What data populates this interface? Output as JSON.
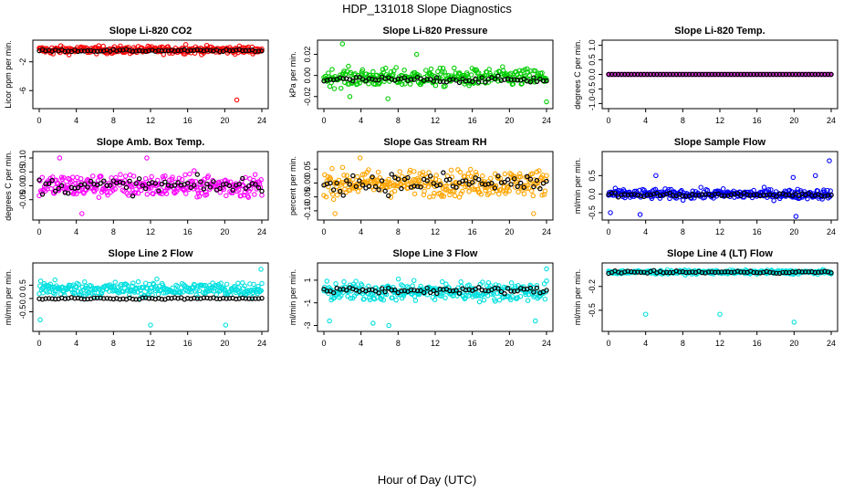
{
  "title": "HDP_131018  Slope Diagnostics",
  "xlabel": "Hour of Day (UTC)",
  "chart_data": [
    {
      "type": "scatter",
      "title": "Slope Li-820 CO2",
      "ylabel": "Licor ppm per min.",
      "color": "#ff0000",
      "xlim": [
        0,
        24
      ],
      "ylim": [
        -8,
        0.5
      ],
      "yticks": [
        -6,
        -2
      ],
      "ytick_labels": [
        "-6",
        "-2"
      ],
      "xticks": [
        0,
        4,
        8,
        12,
        16,
        20,
        24
      ],
      "color_series": {
        "center": -0.35,
        "spread": 0.55,
        "outliers": [
          [
            15.8,
            0.4
          ],
          [
            21.3,
            -7.3
          ],
          [
            1.5,
            -0.9
          ]
        ]
      },
      "black_series": {
        "center": -0.45,
        "spread": 0.15
      }
    },
    {
      "type": "scatter",
      "title": "Slope Li-820 Pressure",
      "ylabel": "kPa per min.",
      "color": "#00cc00",
      "xlim": [
        0,
        24
      ],
      "ylim": [
        -0.028,
        0.03
      ],
      "yticks": [
        -0.02,
        0,
        0.02
      ],
      "ytick_labels": [
        "-0.02",
        "0.00",
        "0.02"
      ],
      "xticks": [
        0,
        4,
        8,
        12,
        16,
        20,
        24
      ],
      "color_series": {
        "center": -0.002,
        "spread": 0.009,
        "outliers": [
          [
            2.0,
            0.03
          ],
          [
            10.0,
            0.02
          ],
          [
            24.0,
            -0.025
          ],
          [
            2.8,
            -0.02
          ],
          [
            6.9,
            -0.022
          ]
        ]
      },
      "black_series": {
        "center": -0.004,
        "spread": 0.003
      }
    },
    {
      "type": "scatter",
      "title": "Slope Li-820 Temp.",
      "ylabel": "degrees C per min.",
      "color": "#d030d0",
      "xlim": [
        0,
        24
      ],
      "ylim": [
        -1.05,
        1.05
      ],
      "yticks": [
        -1,
        -0.5,
        0,
        0.5,
        1
      ],
      "ytick_labels": [
        "-1.0",
        "-0.5",
        "0.0",
        "0.5",
        "1.0"
      ],
      "xticks": [
        0,
        4,
        8,
        12,
        16,
        20,
        24
      ],
      "color_series": {
        "center": 0,
        "spread": 0,
        "outliers": []
      },
      "black_series": {
        "center": 0,
        "spread": 0
      }
    },
    {
      "type": "scatter",
      "title": "Slope Amb. Box Temp.",
      "ylabel": "degrees C per min.",
      "color": "#ff00ff",
      "xlim": [
        0,
        24
      ],
      "ylim": [
        -0.11,
        0.11
      ],
      "yticks": [
        -0.05,
        0,
        0.05,
        0.1
      ],
      "ytick_labels": [
        "-0.05",
        "0.00",
        "0.05",
        "0.10"
      ],
      "xticks": [
        0,
        4,
        8,
        12,
        16,
        20,
        24
      ],
      "color_series": {
        "center": 0,
        "spread": 0.045,
        "outliers": [
          [
            4.6,
            -0.1
          ],
          [
            2.2,
            0.1
          ],
          [
            11.6,
            0.1
          ]
        ]
      },
      "black_series": {
        "center": 0,
        "spread": 0.03
      }
    },
    {
      "type": "scatter",
      "title": "Slope Gas Stream RH",
      "ylabel": "percent per min.",
      "color": "#ffa500",
      "xlim": [
        0,
        24
      ],
      "ylim": [
        -0.12,
        0.1
      ],
      "yticks": [
        -0.1,
        -0.05,
        0,
        0.05
      ],
      "ytick_labels": [
        "-0.10",
        "-0.05",
        "0.00",
        "0.05"
      ],
      "xticks": [
        0,
        4,
        8,
        12,
        16,
        20,
        24
      ],
      "color_series": {
        "center": 0,
        "spread": 0.05,
        "outliers": [
          [
            3.9,
            0.09
          ],
          [
            1.2,
            -0.11
          ],
          [
            22.6,
            -0.11
          ]
        ]
      },
      "black_series": {
        "center": 0,
        "spread": 0.04
      }
    },
    {
      "type": "scatter",
      "title": "Slope Sample Flow",
      "ylabel": "ml/min per min.",
      "color": "#0000ff",
      "xlim": [
        0,
        24
      ],
      "ylim": [
        -0.6,
        1.05
      ],
      "yticks": [
        -0.5,
        0,
        0.5
      ],
      "ytick_labels": [
        "-0.5",
        "0.0",
        "0.5"
      ],
      "xticks": [
        0,
        4,
        8,
        12,
        16,
        20,
        24
      ],
      "color_series": {
        "center": 0,
        "spread": 0.14,
        "outliers": [
          [
            23.8,
            0.9
          ],
          [
            0.2,
            -0.5
          ],
          [
            3.4,
            -0.55
          ],
          [
            20.2,
            -0.6
          ],
          [
            22.3,
            0.5
          ],
          [
            5.1,
            0.5
          ],
          [
            19.9,
            0.45
          ]
        ]
      },
      "black_series": {
        "center": -0.02,
        "spread": 0.06
      }
    },
    {
      "type": "scatter",
      "title": "Slope Line 2 Flow",
      "ylabel": "ml/min per min.",
      "color": "#00e0e0",
      "xlim": [
        0,
        24
      ],
      "ylim": [
        -1.1,
        1.2
      ],
      "yticks": [
        -0.5,
        0,
        0.5
      ],
      "ytick_labels": [
        "-0.5",
        "0.0",
        "0.5"
      ],
      "xticks": [
        0,
        4,
        8,
        12,
        16,
        20,
        24
      ],
      "color_series": {
        "center": 0.35,
        "spread": 0.3,
        "outliers": [
          [
            23.9,
            1.1
          ],
          [
            0.1,
            -0.8
          ],
          [
            12.0,
            -1.0
          ],
          [
            20.1,
            -1.0
          ],
          [
            1.7,
            0.7
          ]
        ]
      },
      "black_series": {
        "center": 0.0,
        "spread": 0.04
      }
    },
    {
      "type": "scatter",
      "title": "Slope Line 3 Flow",
      "ylabel": "ml/min per min.",
      "color": "#00e0e0",
      "xlim": [
        0,
        24
      ],
      "ylim": [
        -3.2,
        2.2
      ],
      "yticks": [
        -3,
        -1,
        1
      ],
      "ytick_labels": [
        "-3",
        "-1",
        "1"
      ],
      "xticks": [
        0,
        4,
        8,
        12,
        16,
        20,
        24
      ],
      "color_series": {
        "center": 0,
        "spread": 0.9,
        "outliers": [
          [
            24.0,
            2.0
          ],
          [
            7.0,
            -3.0
          ],
          [
            22.8,
            -2.6
          ],
          [
            0.6,
            -2.6
          ],
          [
            5.3,
            -2.8
          ]
        ]
      },
      "black_series": {
        "center": 0.1,
        "spread": 0.3
      }
    },
    {
      "type": "scatter",
      "title": "Slope Line 4 (LT) Flow",
      "ylabel": "ml/min per min.",
      "color": "#00e0e0",
      "xlim": [
        0,
        24
      ],
      "ylim": [
        -0.72,
        0.05
      ],
      "yticks": [
        -0.5,
        -0.2
      ],
      "ytick_labels": [
        "-0.5",
        "-0.2"
      ],
      "xticks": [
        0,
        4,
        8,
        12,
        16,
        20,
        24
      ],
      "color_series": {
        "center": -0.02,
        "spread": 0.025,
        "outliers": [
          [
            4.0,
            -0.55
          ],
          [
            12.0,
            -0.55
          ],
          [
            20.0,
            -0.65
          ]
        ]
      },
      "black_series": {
        "center": -0.02,
        "spread": 0.015
      }
    }
  ]
}
